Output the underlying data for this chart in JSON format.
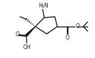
{
  "bg_color": "#ffffff",
  "line_color": "#1a1a1a",
  "line_width": 1.0,
  "figsize": [
    1.39,
    0.85
  ],
  "dpi": 100,
  "xlim": [
    0,
    10
  ],
  "ylim": [
    0,
    7
  ]
}
